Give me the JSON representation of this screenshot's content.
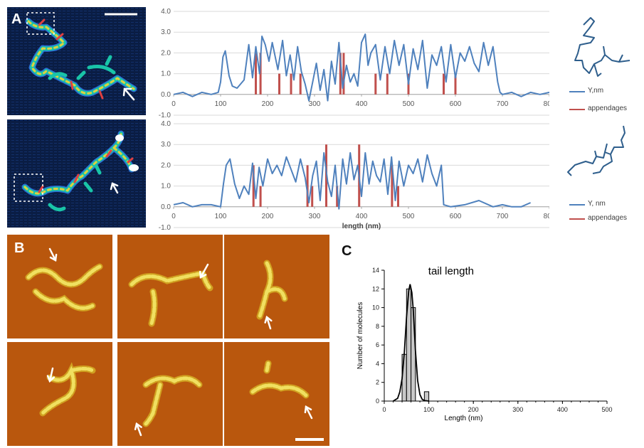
{
  "panels": {
    "a": "A",
    "b": "B",
    "c": "C"
  },
  "colors": {
    "profile_line": "#4f81bd",
    "appendage_bars": "#c0504d",
    "histogram_bar": "#c8c8c8",
    "afm_blue_bg": "#08183a",
    "afm_orange_bg": "#b5540a",
    "afm_yellow": "#f0e060"
  },
  "icons": [
    "white-arrow-icon",
    "scale-bar",
    "dashed-box-icon"
  ],
  "chart_data": [
    {
      "type": "line",
      "x_range": [
        0,
        800
      ],
      "ylim": [
        -1.0,
        4.0
      ],
      "y_ticks": [
        "4.0",
        "3.0",
        "2.0",
        "1.0",
        "0.0",
        "-1.0"
      ],
      "x_ticks": [
        "0",
        "100",
        "200",
        "300",
        "400",
        "500",
        "600",
        "700",
        "800"
      ],
      "xlabel": "",
      "grid": true,
      "legend_position": "right",
      "series": [
        {
          "name": "Y,nm",
          "x": [
            0,
            20,
            40,
            60,
            80,
            95,
            100,
            105,
            110,
            118,
            125,
            135,
            150,
            160,
            168,
            175,
            183,
            188,
            195,
            203,
            210,
            222,
            232,
            240,
            248,
            256,
            264,
            272,
            280,
            288,
            296,
            304,
            312,
            320,
            328,
            336,
            344,
            352,
            360,
            368,
            376,
            384,
            392,
            400,
            408,
            414,
            420,
            430,
            440,
            450,
            460,
            470,
            480,
            490,
            500,
            510,
            520,
            530,
            540,
            550,
            560,
            570,
            580,
            590,
            600,
            610,
            620,
            630,
            640,
            650,
            660,
            670,
            680,
            690,
            695,
            700,
            720,
            740,
            760,
            780,
            800
          ],
          "y": [
            0.0,
            0.1,
            -0.1,
            0.1,
            0.0,
            0.1,
            0.6,
            1.8,
            2.1,
            0.9,
            0.4,
            0.3,
            0.7,
            2.4,
            0.8,
            2.3,
            1.0,
            2.8,
            2.4,
            1.6,
            2.5,
            1.2,
            2.6,
            0.9,
            1.9,
            0.7,
            2.3,
            1.1,
            0.5,
            -0.3,
            0.6,
            1.5,
            0.2,
            1.2,
            -0.3,
            1.6,
            0.5,
            2.5,
            0.3,
            1.4,
            0.6,
            1.0,
            0.4,
            2.5,
            2.9,
            1.4,
            2.0,
            2.4,
            0.7,
            2.3,
            1.0,
            2.6,
            1.4,
            2.4,
            0.5,
            2.2,
            1.2,
            2.6,
            0.3,
            1.9,
            1.4,
            2.3,
            0.6,
            2.4,
            0.8,
            2.0,
            1.6,
            2.3,
            1.5,
            1.1,
            2.5,
            1.4,
            2.3,
            0.6,
            0.1,
            0.0,
            0.1,
            -0.1,
            0.1,
            0.0,
            0.1
          ]
        },
        {
          "name": "appendages",
          "x": [
            175,
            185,
            225,
            250,
            270,
            355,
            362,
            430,
            455,
            500,
            575,
            600
          ],
          "y": [
            2.0,
            2.0,
            1.0,
            1.0,
            1.0,
            2.0,
            2.0,
            1.0,
            1.0,
            1.0,
            1.0,
            1.0
          ]
        }
      ]
    },
    {
      "type": "line",
      "x_range": [
        0,
        800
      ],
      "ylim": [
        -1.0,
        4.0
      ],
      "y_ticks": [
        "4.0",
        "3.0",
        "2.0",
        "1.0",
        "0.0",
        "-1.0"
      ],
      "x_ticks": [
        "0",
        "100",
        "200",
        "300",
        "400",
        "500",
        "600",
        "700",
        "800"
      ],
      "xlabel": "length (nm)",
      "grid": true,
      "legend_position": "right",
      "series": [
        {
          "name": "Y, nm",
          "x": [
            0,
            20,
            40,
            60,
            80,
            100,
            106,
            112,
            120,
            130,
            140,
            150,
            160,
            168,
            175,
            182,
            190,
            200,
            210,
            220,
            230,
            240,
            250,
            260,
            270,
            280,
            288,
            296,
            304,
            312,
            320,
            328,
            336,
            344,
            352,
            360,
            368,
            376,
            384,
            392,
            400,
            408,
            416,
            424,
            432,
            440,
            448,
            456,
            464,
            472,
            480,
            490,
            500,
            510,
            520,
            530,
            540,
            550,
            560,
            570,
            575,
            590,
            620,
            650,
            680,
            700,
            720,
            740,
            760
          ],
          "y": [
            0.1,
            0.2,
            0.0,
            0.1,
            0.1,
            0.0,
            1.1,
            2.0,
            2.3,
            1.1,
            0.4,
            1.0,
            0.6,
            2.1,
            0.4,
            1.9,
            1.0,
            2.3,
            1.6,
            2.0,
            1.5,
            2.4,
            1.8,
            1.2,
            2.3,
            1.4,
            0.2,
            1.5,
            2.2,
            0.3,
            2.6,
            1.2,
            0.5,
            2.0,
            -0.1,
            2.3,
            1.1,
            2.6,
            1.3,
            2.0,
            0.5,
            2.6,
            1.1,
            2.2,
            1.5,
            1.2,
            2.3,
            0.6,
            2.4,
            0.3,
            2.2,
            1.0,
            2.0,
            1.6,
            2.3,
            1.2,
            2.5,
            1.6,
            1.0,
            2.0,
            0.1,
            0.0,
            0.1,
            0.3,
            0.0,
            0.1,
            0.0,
            0.0,
            0.2
          ]
        },
        {
          "name": "appendages",
          "x": [
            170,
            185,
            285,
            295,
            325,
            348,
            395,
            465,
            478
          ],
          "y": [
            2.0,
            1.0,
            2.0,
            1.0,
            3.0,
            1.0,
            3.0,
            2.0,
            1.0
          ]
        }
      ]
    },
    {
      "type": "bar",
      "title": "tail length",
      "xlabel": "Length (nm)",
      "ylabel": "Number of molecules",
      "xlim": [
        0,
        500
      ],
      "ylim": [
        0,
        14
      ],
      "x_ticks": [
        "0",
        "100",
        "200",
        "300",
        "400",
        "500"
      ],
      "y_ticks": [
        "0",
        "2",
        "4",
        "6",
        "8",
        "10",
        "12",
        "14"
      ],
      "bars": [
        {
          "x0": 40,
          "x1": 50,
          "value": 5
        },
        {
          "x0": 50,
          "x1": 60,
          "value": 12
        },
        {
          "x0": 60,
          "x1": 70,
          "value": 10
        },
        {
          "x0": 90,
          "x1": 100,
          "value": 1
        }
      ],
      "fit_curve": {
        "x": [
          20,
          30,
          35,
          40,
          45,
          50,
          55,
          58,
          62,
          65,
          70,
          75,
          80,
          85,
          90,
          100
        ],
        "y": [
          0.0,
          0.3,
          1.0,
          2.4,
          5.2,
          9.0,
          11.8,
          12.5,
          11.6,
          9.8,
          5.4,
          2.2,
          0.7,
          0.2,
          0.05,
          0.0
        ]
      }
    }
  ]
}
